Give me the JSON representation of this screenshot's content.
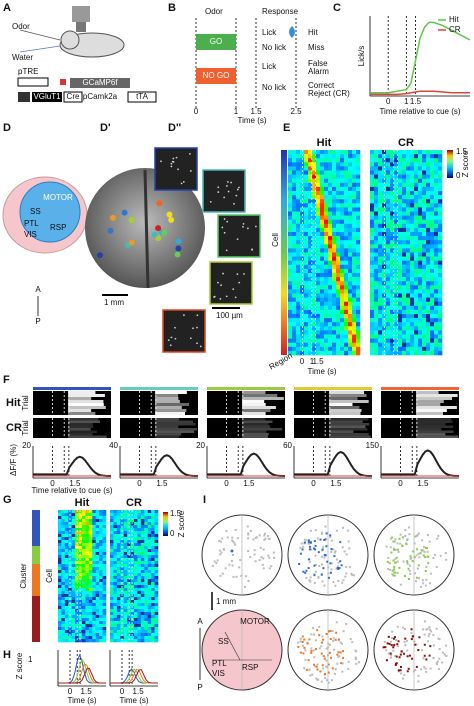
{
  "panels": {
    "a": "A",
    "b": "B",
    "c": "C",
    "d": "D",
    "d1": "D'",
    "d2": "D''",
    "e": "E",
    "f": "F",
    "g": "G",
    "h": "H",
    "i": "I"
  },
  "a": {
    "odor": "Odor",
    "water": "Water",
    "ptre": "pTRE",
    "gcamp": "GCaMP6f",
    "vglut": "VGluT1",
    "cre": "Cre",
    "pcamk": "pCamk2a",
    "tta": "tTA"
  },
  "b": {
    "odor": "Odor",
    "response": "Response",
    "go": "GO",
    "nogo": "NO GO",
    "lick1": "Lick",
    "hit": "Hit",
    "nolick1": "No lick",
    "miss": "Miss",
    "lick2": "Lick",
    "fa": [
      "False",
      "Alarm"
    ],
    "nolick2": "No lick",
    "cr": [
      "Correct",
      "Reject (CR)"
    ],
    "ticks": [
      "0",
      "1",
      "1.5",
      "2.5"
    ],
    "xlabel": "Time (s)"
  },
  "chart_data": {
    "type": "line",
    "ylabel": "Lick/s",
    "xlabel": "Time relative to cue (s)",
    "x": [
      -1,
      -0.5,
      0,
      0.5,
      1,
      1.25,
      1.5,
      1.75,
      2,
      2.25,
      2.5,
      3,
      3.5,
      4,
      4.5
    ],
    "series": [
      {
        "name": "Hit",
        "color": "#5ec74a",
        "values": [
          0.2,
          0.2,
          0.2,
          0.3,
          0.4,
          0.8,
          2.2,
          3.6,
          4.3,
          4.6,
          4.6,
          4.4,
          4.1,
          3.8,
          3.5
        ]
      },
      {
        "name": "CR",
        "color": "#e0443a",
        "values": [
          0.1,
          0.1,
          0.1,
          0.1,
          0.15,
          0.2,
          0.25,
          0.3,
          0.3,
          0.3,
          0.3,
          0.25,
          0.2,
          0.2,
          0.2
        ]
      }
    ],
    "xlim": [
      -1,
      4.5
    ],
    "xticks": [
      0,
      1,
      1.5
    ],
    "ylim": [
      0,
      5
    ],
    "legend": "upper right"
  },
  "d": {
    "motor": "MOTOR",
    "ss": "SS",
    "ptl": "PTL",
    "vis": "VIS",
    "rsp": "RSP",
    "a": "A",
    "p": "P",
    "scale": "1 mm",
    "scale2": "100 µm"
  },
  "e": {
    "hit": "Hit",
    "cr": "CR",
    "cell": "Cell",
    "region": "Region",
    "xlabel": "Time (s)",
    "ticks": [
      "0",
      "1",
      "1.5"
    ],
    "cbar": [
      "1.5",
      "0"
    ],
    "cbar_label": "Z score"
  },
  "f": {
    "hit": "Hit",
    "cr": "CR",
    "trial": [
      "Trial",
      "Trial"
    ],
    "ylabel": "ΔF/F (%)",
    "xlabel": "Time relative to cue (s)",
    "cols": [
      {
        "ymax": "20",
        "ticks": [
          "0",
          "1.5"
        ]
      },
      {
        "ymax": "40",
        "ticks": [
          "0",
          "1.5"
        ]
      },
      {
        "ymax": "20",
        "ticks": [
          "0",
          "1.5"
        ]
      },
      {
        "ymax": "60",
        "ticks": [
          "0",
          "1.5"
        ]
      },
      {
        "ymax": "150",
        "ticks": [
          "0",
          "1.5"
        ]
      }
    ]
  },
  "g": {
    "hit": "Hit",
    "cr": "CR",
    "cluster": "Cluster",
    "cell": "Cell",
    "cbar": [
      "1.5",
      "0"
    ],
    "cbar_label": "Z score"
  },
  "h": {
    "ylabel": "Z score",
    "ytick": "1",
    "plots": [
      {
        "ticks": [
          "0",
          "1.5"
        ],
        "xlabel": "Time (s)"
      },
      {
        "ticks": [
          "0",
          "1.5"
        ],
        "xlabel": "Time (s)"
      }
    ]
  },
  "i": {
    "scale": "1 mm",
    "motor": "MOTOR",
    "ss": "SS",
    "ptl": "PTL",
    "vis": "VIS",
    "rsp": "RSP",
    "a": "A",
    "p": "P"
  }
}
